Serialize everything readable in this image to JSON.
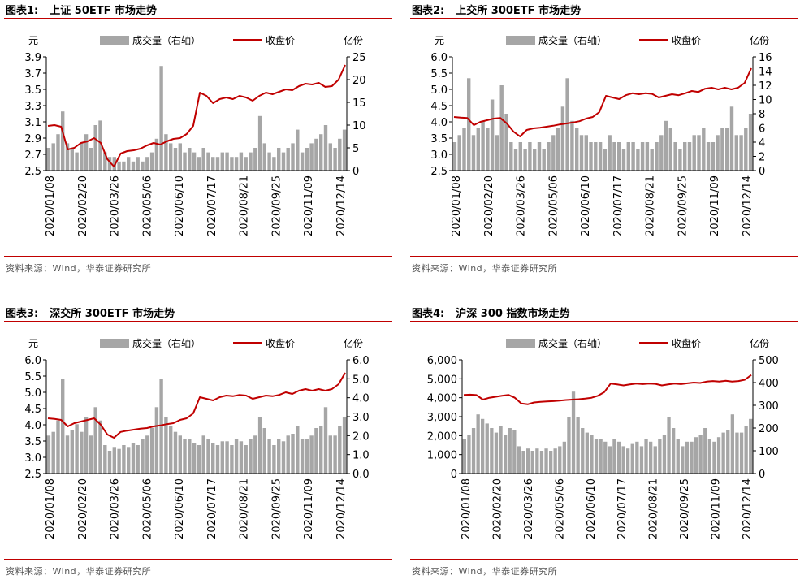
{
  "colors": {
    "close_line": "#c00000",
    "volume_bar": "#a6a6a6",
    "rule": "#c00000",
    "axis": "#000000"
  },
  "legend": {
    "volume": "成交量（右轴）",
    "close": "收盘价"
  },
  "panels": [
    {
      "label": "图表1:",
      "title": "上证 50ETF 市场走势",
      "source": "资料来源：Wind，华泰证券研究所"
    },
    {
      "label": "图表2:",
      "title": "上交所 300ETF 市场走势",
      "source": "资料来源：Wind，华泰证券研究所"
    },
    {
      "label": "图表3:",
      "title": "深交所 300ETF 市场走势",
      "source": "资料来源：Wind，华泰证券研究所"
    },
    {
      "label": "图表4:",
      "title": "沪深 300 指数市场走势",
      "source": "资料来源：Wind，华泰证券研究所"
    }
  ],
  "chart_data": [
    {
      "type": "bar+line",
      "title": "上证 50ETF 市场走势",
      "ylabel_left": "元",
      "ylabel_right": "亿份",
      "ylim_left": [
        2.5,
        3.9
      ],
      "yticks_left": [
        "2.5",
        "2.7",
        "2.9",
        "3.1",
        "3.3",
        "3.5",
        "3.7",
        "3.9"
      ],
      "ylim_right": [
        0,
        25
      ],
      "yticks_right": [
        "0",
        "5",
        "10",
        "15",
        "20",
        "25"
      ],
      "xticks": [
        "2020/01/08",
        "2020/02/20",
        "2020/03/26",
        "2020/05/06",
        "2020/06/10",
        "2020/07/17",
        "2020/08/21",
        "2020/09/25",
        "2020/11/09",
        "2020/12/14"
      ],
      "series": [
        {
          "name": "收盘价",
          "kind": "line",
          "axis": "left",
          "values": [
            3.05,
            3.06,
            3.04,
            2.76,
            2.78,
            2.84,
            2.86,
            2.9,
            2.84,
            2.64,
            2.55,
            2.71,
            2.74,
            2.75,
            2.77,
            2.81,
            2.84,
            2.82,
            2.86,
            2.89,
            2.9,
            2.95,
            3.05,
            3.46,
            3.42,
            3.33,
            3.38,
            3.4,
            3.38,
            3.42,
            3.4,
            3.36,
            3.42,
            3.46,
            3.44,
            3.47,
            3.5,
            3.49,
            3.54,
            3.57,
            3.56,
            3.58,
            3.53,
            3.54,
            3.62,
            3.8
          ]
        },
        {
          "name": "成交量（右轴）",
          "kind": "bar",
          "axis": "right",
          "values": [
            5,
            6,
            8,
            13,
            6,
            5,
            4,
            6,
            8,
            5,
            10,
            11,
            4,
            3,
            3,
            2,
            2,
            3,
            2,
            3,
            2,
            3,
            4,
            7,
            23,
            8,
            6,
            5,
            6,
            4,
            5,
            4,
            3,
            5,
            4,
            3,
            3,
            4,
            4,
            3,
            3,
            4,
            3,
            4,
            5,
            12,
            6,
            4,
            3,
            5,
            4,
            5,
            6,
            9,
            4,
            5,
            6,
            7,
            8,
            10,
            6,
            5,
            7,
            9
          ]
        }
      ]
    },
    {
      "type": "bar+line",
      "title": "上交所 300ETF 市场走势",
      "ylabel_left": "元",
      "ylabel_right": "亿份",
      "ylim_left": [
        2.5,
        6.0
      ],
      "yticks_left": [
        "2.5",
        "3.0",
        "3.5",
        "4.0",
        "4.5",
        "5.0",
        "5.5",
        "6.0"
      ],
      "ylim_right": [
        0,
        16
      ],
      "yticks_right": [
        "0",
        "2",
        "4",
        "6",
        "8",
        "10",
        "12",
        "14",
        "16"
      ],
      "xticks": [
        "2020/01/08",
        "2020/02/20",
        "2020/03/26",
        "2020/05/06",
        "2020/06/10",
        "2020/07/17",
        "2020/08/21",
        "2020/09/25",
        "2020/11/09",
        "2020/12/14"
      ],
      "series": [
        {
          "name": "收盘价",
          "kind": "line",
          "axis": "left",
          "values": [
            4.15,
            4.13,
            4.12,
            3.9,
            4.0,
            4.05,
            4.1,
            4.12,
            3.95,
            3.7,
            3.55,
            3.75,
            3.8,
            3.82,
            3.85,
            3.88,
            3.92,
            3.95,
            3.98,
            4.02,
            4.1,
            4.15,
            4.3,
            4.8,
            4.75,
            4.7,
            4.82,
            4.88,
            4.85,
            4.88,
            4.86,
            4.75,
            4.8,
            4.85,
            4.82,
            4.88,
            4.95,
            4.92,
            5.02,
            5.05,
            5.0,
            5.05,
            5.0,
            5.05,
            5.2,
            5.65
          ]
        },
        {
          "name": "成交量（右轴）",
          "kind": "bar",
          "axis": "right",
          "values": [
            4,
            5,
            6,
            13,
            5,
            6,
            7,
            6,
            10,
            5,
            12,
            8,
            4,
            3,
            4,
            3,
            4,
            3,
            4,
            3,
            4,
            5,
            6,
            9,
            13,
            7,
            6,
            5,
            5,
            4,
            4,
            4,
            3,
            5,
            4,
            4,
            3,
            4,
            4,
            3,
            4,
            4,
            3,
            4,
            5,
            7,
            6,
            4,
            3,
            4,
            4,
            5,
            5,
            6,
            4,
            4,
            5,
            6,
            6,
            9,
            5,
            5,
            6,
            8
          ]
        }
      ]
    },
    {
      "type": "bar+line",
      "title": "深交所 300ETF 市场走势",
      "ylabel_left": "元",
      "ylabel_right": "亿份",
      "ylim_left": [
        2.5,
        6.0
      ],
      "yticks_left": [
        "2.5",
        "3.0",
        "3.5",
        "4.0",
        "4.5",
        "5.0",
        "5.5",
        "6.0"
      ],
      "ylim_right": [
        0,
        6
      ],
      "yticks_right": [
        "0.0",
        "1.0",
        "2.0",
        "3.0",
        "4.0",
        "5.0",
        "6.0"
      ],
      "xticks": [
        "2020/01/08",
        "2020/02/20",
        "2020/03/26",
        "2020/05/06",
        "2020/06/10",
        "2020/07/17",
        "2020/08/21",
        "2020/09/25",
        "2020/11/09",
        "2020/12/14"
      ],
      "series": [
        {
          "name": "收盘价",
          "kind": "line",
          "axis": "left",
          "values": [
            4.2,
            4.18,
            4.15,
            3.95,
            4.05,
            4.1,
            4.15,
            4.2,
            4.0,
            3.7,
            3.6,
            3.78,
            3.82,
            3.85,
            3.88,
            3.9,
            3.95,
            3.98,
            4.02,
            4.05,
            4.15,
            4.2,
            4.35,
            4.85,
            4.8,
            4.75,
            4.85,
            4.9,
            4.88,
            4.92,
            4.9,
            4.8,
            4.85,
            4.9,
            4.88,
            4.92,
            5.0,
            4.95,
            5.05,
            5.1,
            5.05,
            5.1,
            5.05,
            5.1,
            5.25,
            5.6
          ]
        },
        {
          "name": "成交量（右轴）",
          "kind": "bar",
          "axis": "right",
          "values": [
            2.0,
            2.2,
            2.8,
            5.0,
            2.0,
            2.3,
            2.6,
            2.2,
            3.0,
            2.0,
            3.5,
            2.8,
            1.5,
            1.2,
            1.4,
            1.3,
            1.5,
            1.4,
            1.6,
            1.5,
            1.8,
            2.0,
            2.4,
            3.5,
            5.0,
            3.0,
            2.5,
            2.2,
            2.0,
            1.8,
            1.8,
            1.6,
            1.5,
            2.0,
            1.8,
            1.6,
            1.5,
            1.7,
            1.7,
            1.5,
            1.8,
            1.7,
            1.5,
            1.8,
            2.0,
            3.0,
            2.4,
            1.8,
            1.5,
            1.8,
            1.7,
            2.0,
            2.1,
            2.5,
            1.8,
            1.8,
            2.0,
            2.4,
            2.5,
            3.5,
            2.0,
            2.0,
            2.5,
            3.0
          ]
        }
      ]
    },
    {
      "type": "bar+line",
      "title": "沪深 300 指数市场走势",
      "ylabel_left": "",
      "ylabel_right": "亿份",
      "ylim_left": [
        0,
        6000
      ],
      "yticks_left": [
        "0",
        "1,000",
        "2,000",
        "3,000",
        "4,000",
        "5,000",
        "6,000"
      ],
      "ylim_right": [
        0,
        500
      ],
      "yticks_right": [
        "0",
        "100",
        "200",
        "300",
        "400",
        "500"
      ],
      "xticks": [
        "2020/01/08",
        "2020/02/20",
        "2020/03/26",
        "2020/05/06",
        "2020/06/10",
        "2020/07/17",
        "2020/08/21",
        "2020/09/25",
        "2020/11/09",
        "2020/12/14"
      ],
      "series": [
        {
          "name": "收盘价",
          "kind": "line",
          "axis": "left",
          "values": [
            4150,
            4160,
            4140,
            3900,
            4000,
            4050,
            4100,
            4150,
            4000,
            3700,
            3650,
            3750,
            3780,
            3800,
            3820,
            3850,
            3880,
            3900,
            3920,
            3950,
            4000,
            4100,
            4300,
            4750,
            4700,
            4650,
            4700,
            4750,
            4720,
            4750,
            4730,
            4650,
            4700,
            4750,
            4720,
            4760,
            4800,
            4780,
            4850,
            4880,
            4850,
            4900,
            4850,
            4880,
            4950,
            5200
          ]
        },
        {
          "name": "成交量（右轴）",
          "kind": "bar",
          "axis": "right",
          "values": [
            150,
            170,
            200,
            260,
            240,
            220,
            200,
            180,
            210,
            170,
            200,
            190,
            120,
            100,
            110,
            100,
            110,
            100,
            110,
            100,
            110,
            120,
            140,
            250,
            360,
            250,
            200,
            180,
            170,
            150,
            150,
            140,
            120,
            150,
            140,
            120,
            110,
            130,
            140,
            120,
            150,
            140,
            120,
            150,
            170,
            250,
            200,
            150,
            120,
            140,
            140,
            160,
            170,
            200,
            150,
            140,
            160,
            180,
            190,
            260,
            180,
            180,
            210,
            240
          ]
        }
      ]
    }
  ]
}
